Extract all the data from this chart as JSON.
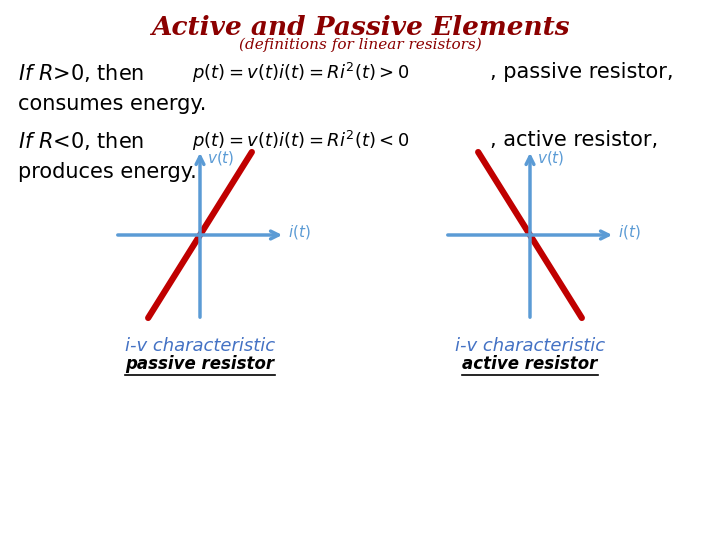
{
  "title": "Active and Passive Elements",
  "subtitle": "(definitions for linear resistors)",
  "title_color": "#8B0000",
  "subtitle_color": "#8B0000",
  "bg_color": "#FFFFFF",
  "text_color": "#000000",
  "axis_color": "#5B9BD5",
  "line_color": "#C00000",
  "label_color": "#4472C4",
  "graph1_label": "i-v characteristic",
  "graph1_sublabel": "passive resistor",
  "graph2_label": "i-v characteristic",
  "graph2_sublabel": "active resistor"
}
